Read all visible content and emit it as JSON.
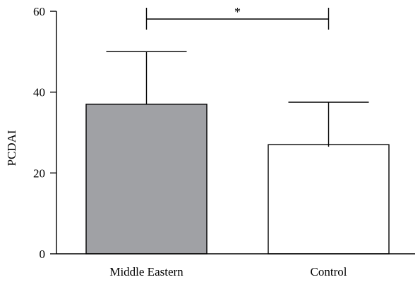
{
  "chart_data": {
    "type": "bar",
    "title": "",
    "xlabel": "",
    "ylabel": "PCDAI",
    "categories": [
      "Middle Eastern",
      "Control"
    ],
    "values": [
      37,
      27
    ],
    "error_upper": [
      50,
      37.5
    ],
    "error_lower": [
      37,
      26.5
    ],
    "ylim": [
      0,
      60
    ],
    "yticks": [
      0,
      20,
      40,
      60
    ],
    "tick_labels": [
      "0",
      "20",
      "40",
      "60"
    ],
    "grid": false,
    "bar_colors": [
      "#a0a1a5",
      "#ffffff"
    ],
    "significance": {
      "between": [
        "Middle Eastern",
        "Control"
      ],
      "label": "*"
    }
  }
}
